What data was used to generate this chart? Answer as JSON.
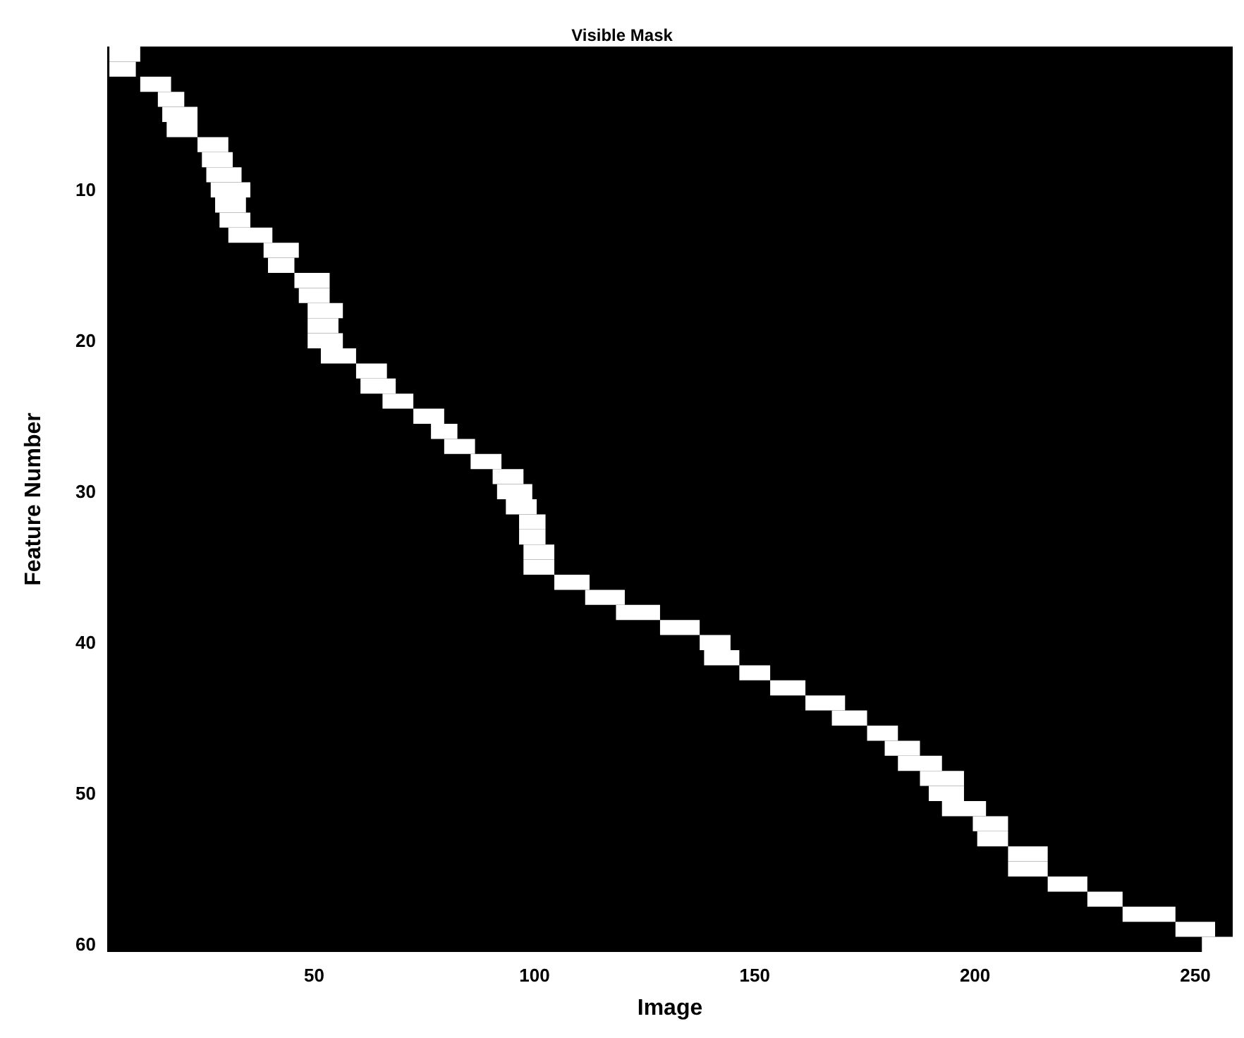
{
  "chart_data": {
    "type": "bar",
    "orientation": "horizontal",
    "title": "Visible Mask",
    "xlabel": "Image",
    "ylabel": "Feature Number",
    "color": "#ffffff",
    "categories": [
      null,
      null,
      null,
      null,
      null,
      null,
      null,
      null,
      null,
      "10",
      null,
      null,
      null,
      null,
      null,
      null,
      null,
      null,
      null,
      "20",
      null,
      null,
      null,
      null,
      null,
      null,
      null,
      null,
      null,
      "30",
      null,
      null,
      null,
      null,
      null,
      null,
      null,
      null,
      null,
      "40",
      null,
      null,
      null,
      null,
      null,
      null,
      null,
      null,
      null,
      "50",
      null,
      null,
      null,
      null,
      null,
      null,
      null,
      null,
      null,
      "60"
    ],
    "base": [
      3.5,
      3.5,
      10.5,
      14.5,
      15.5,
      16.5,
      23.5,
      24.5,
      25.5,
      26.5,
      27.5,
      28.5,
      30.5,
      38.5,
      39.5,
      45.5,
      46.5,
      48.5,
      48.5,
      48.5,
      51.5,
      59.5,
      60.5,
      65.5,
      72.5,
      76.5,
      79.5,
      85.5,
      90.5,
      91.5,
      93.5,
      96.5,
      96.5,
      97.5,
      97.5,
      104.5,
      111.5,
      118.5,
      128.5,
      137.5,
      138.5,
      146.5,
      153.5,
      161.5,
      167.5,
      175.5,
      179.5,
      182.5,
      187.5,
      189.5,
      192.5,
      199.5,
      200.5,
      207.5,
      207.5,
      216.5,
      225.5,
      233.5,
      245.5,
      251.5
    ],
    "values": [
      7,
      6,
      7,
      6,
      8,
      7,
      7,
      7,
      8,
      9,
      7,
      7,
      10,
      8,
      6,
      8,
      7,
      8,
      7,
      8,
      8,
      7,
      8,
      7,
      7,
      6,
      7,
      7,
      7,
      8,
      7,
      6,
      6,
      7,
      7,
      8,
      9,
      10,
      9,
      7,
      8,
      7,
      8,
      9,
      8,
      7,
      8,
      10,
      10,
      8,
      10,
      8,
      7,
      9,
      9,
      9,
      8,
      12,
      9,
      7
    ],
    "xlim": [
      3,
      258.5
    ],
    "xticks": [
      50,
      100,
      150,
      200,
      250
    ]
  }
}
